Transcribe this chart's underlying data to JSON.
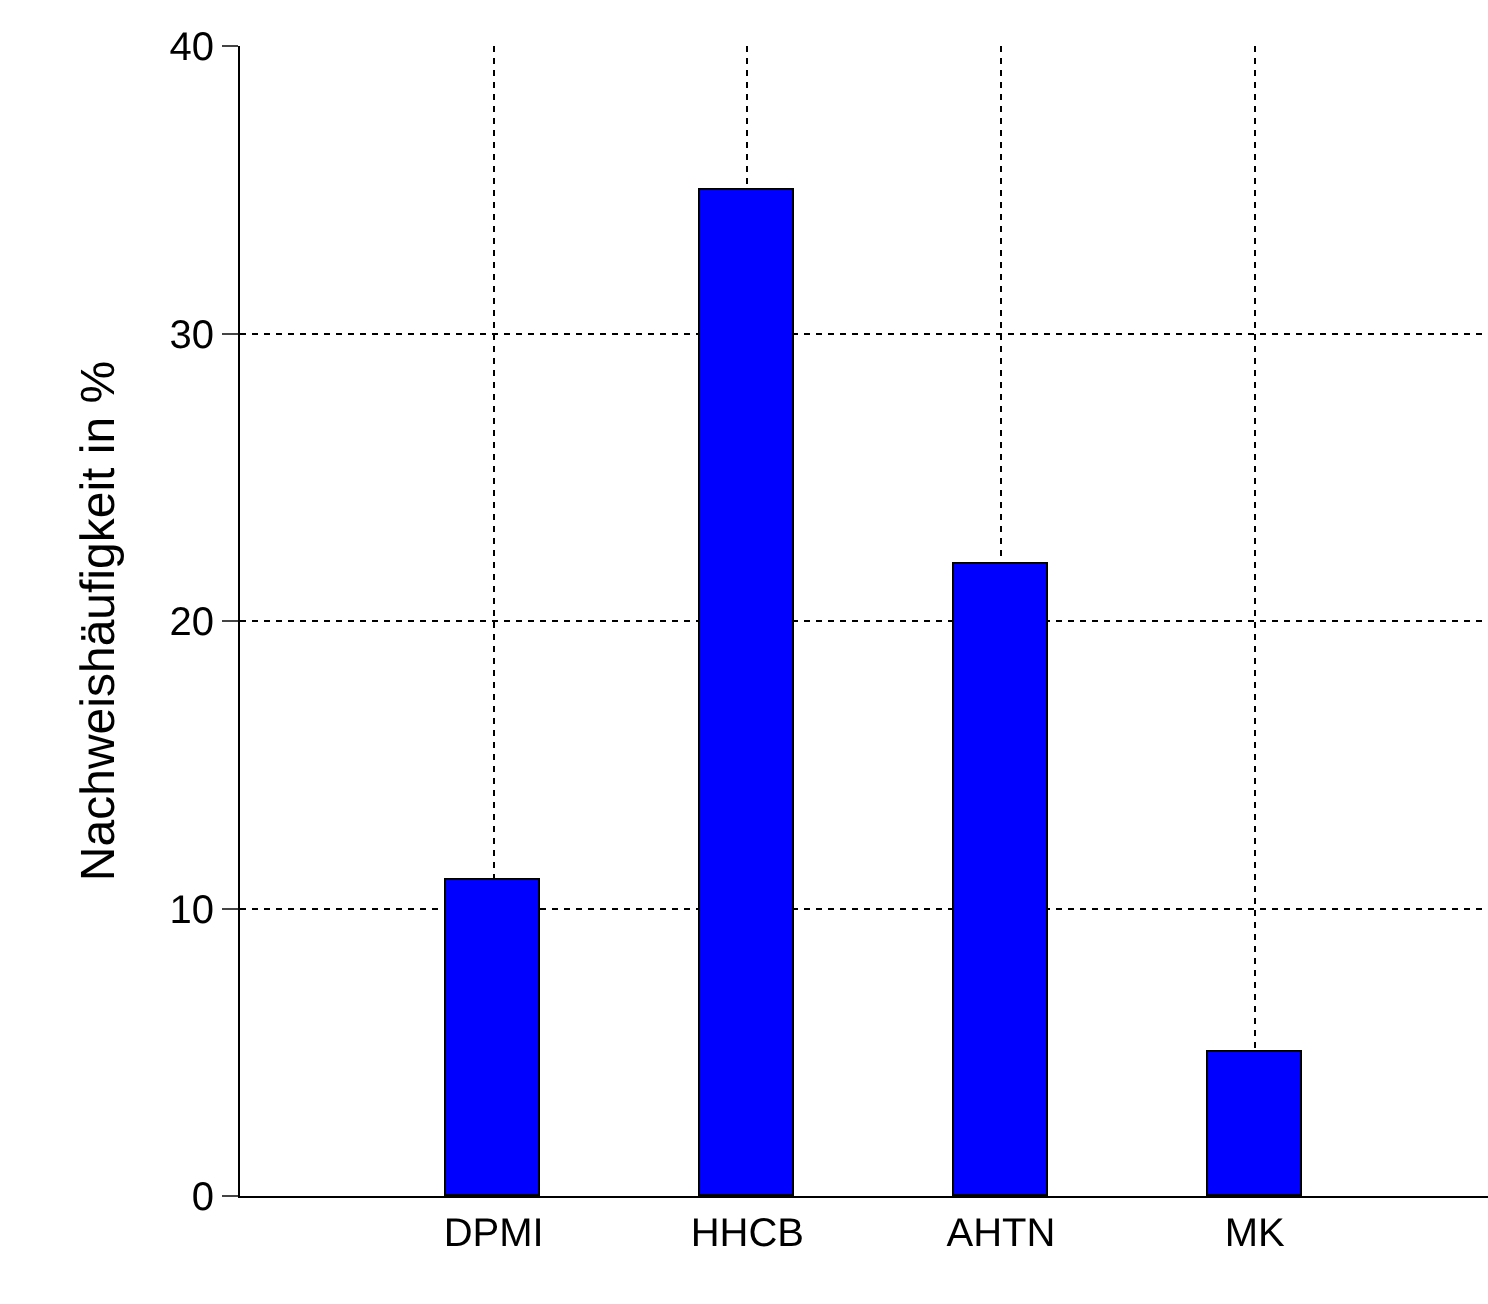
{
  "chart_data": {
    "type": "bar",
    "ylabel": "Nachweishäufigkeit in %",
    "categories": [
      "DPMI",
      "HHCB",
      "AHTN",
      "MK"
    ],
    "values": [
      11,
      35,
      22,
      5
    ],
    "color": "#0000ff",
    "ylim": [
      0,
      40
    ],
    "yticks": [
      0,
      10,
      20,
      30,
      40
    ],
    "grid": true
  }
}
